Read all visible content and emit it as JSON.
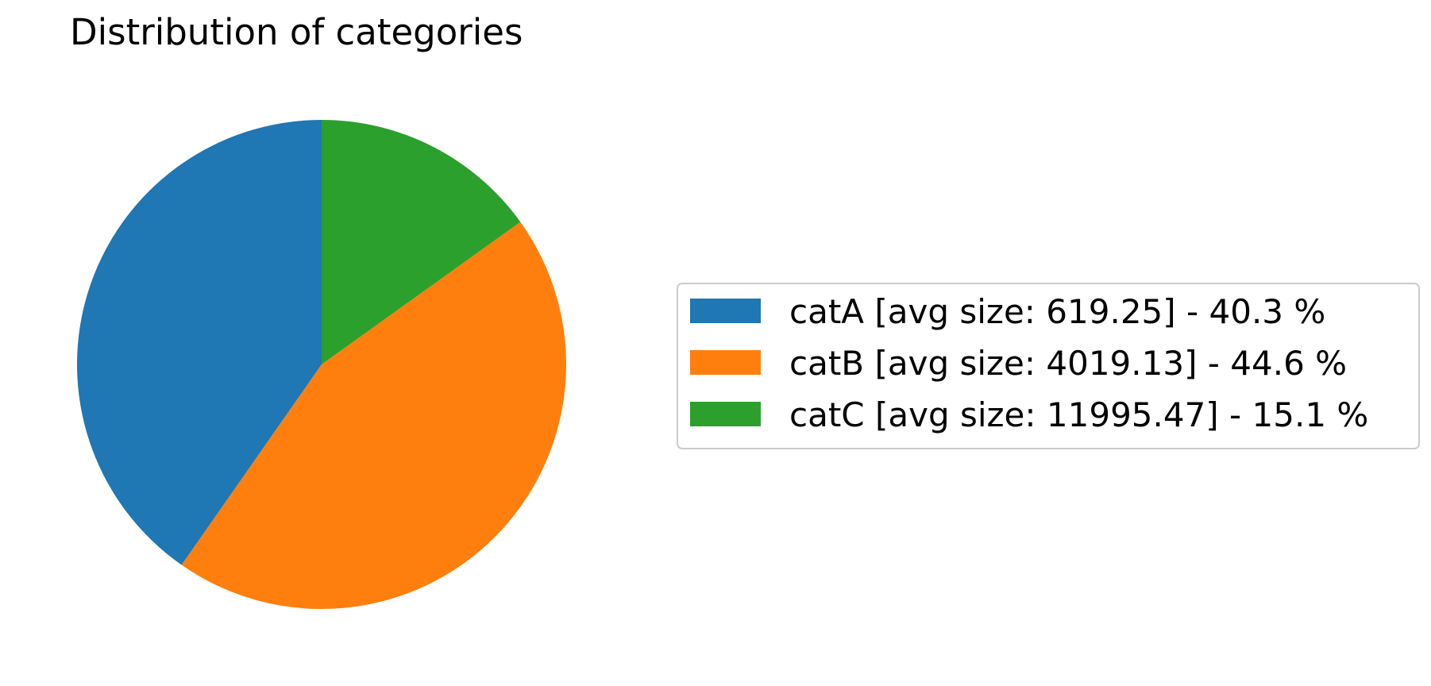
{
  "chart_data": {
    "type": "pie",
    "title": "Distribution of categories",
    "start_angle_deg": 90,
    "direction": "counterclockwise",
    "legend_position": "right",
    "slices": [
      {
        "name": "catA",
        "label": "catA [avg size: 619.25] - 40.3 %",
        "value": 40.3,
        "color": "#1f77b4"
      },
      {
        "name": "catB",
        "label": "catB [avg size: 4019.13] - 44.6 %",
        "value": 44.6,
        "color": "#ff7f0e"
      },
      {
        "name": "catC",
        "label": "catC [avg size: 11995.47] - 15.1 %",
        "value": 15.1,
        "color": "#2ca02c"
      }
    ]
  }
}
